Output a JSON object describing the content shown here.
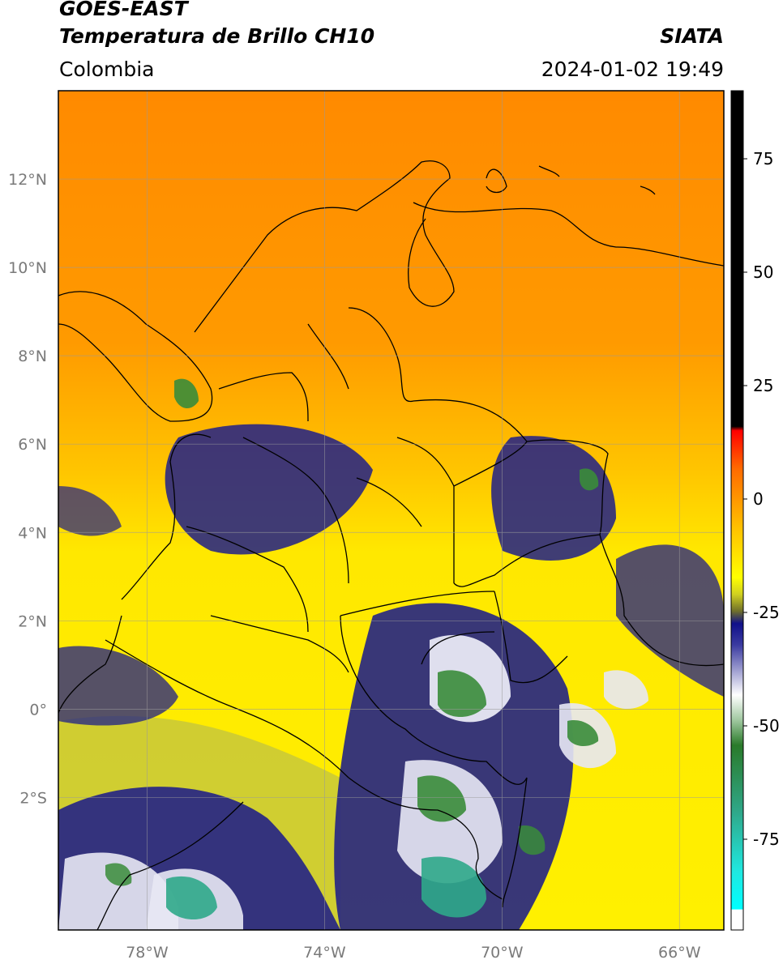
{
  "header": {
    "satellite": "GOES-EAST",
    "product": "Temperatura de Brillo CH10",
    "agency": "SIATA",
    "region": "Colombia",
    "datetime": "2024-01-02 19:49"
  },
  "map": {
    "lon_range": [
      -80,
      -65
    ],
    "lat_range": [
      -5,
      14
    ],
    "lon_ticks": [
      {
        "value": -78,
        "label": "78°W"
      },
      {
        "value": -74,
        "label": "74°W"
      },
      {
        "value": -70,
        "label": "70°W"
      },
      {
        "value": -66,
        "label": "66°W"
      }
    ],
    "lat_ticks": [
      {
        "value": 12,
        "label": "12°N"
      },
      {
        "value": 10,
        "label": "10°N"
      },
      {
        "value": 8,
        "label": "8°N"
      },
      {
        "value": 6,
        "label": "6°N"
      },
      {
        "value": 4,
        "label": "4°N"
      },
      {
        "value": 2,
        "label": "2°N"
      },
      {
        "value": 0,
        "label": "0°"
      },
      {
        "value": -2,
        "label": "2°S"
      }
    ],
    "colors": {
      "warm": "#ff8c00",
      "mild": "#ffd000",
      "yellow": "#fff200",
      "olive": "#c8c838",
      "navy": "#1a1a80",
      "white": "#ffffff",
      "green": "#3a8c3a",
      "teal": "#2fa88a",
      "border": "#000000",
      "grid": "#9a9a9a"
    }
  },
  "colorbar": {
    "range": [
      -95,
      90
    ],
    "ticks": [
      {
        "value": 75,
        "label": "75"
      },
      {
        "value": 50,
        "label": "50"
      },
      {
        "value": 25,
        "label": "25"
      },
      {
        "value": 0,
        "label": "0"
      },
      {
        "value": -25,
        "label": "-25"
      },
      {
        "value": -50,
        "label": "-50"
      },
      {
        "value": -75,
        "label": "-75"
      }
    ]
  }
}
